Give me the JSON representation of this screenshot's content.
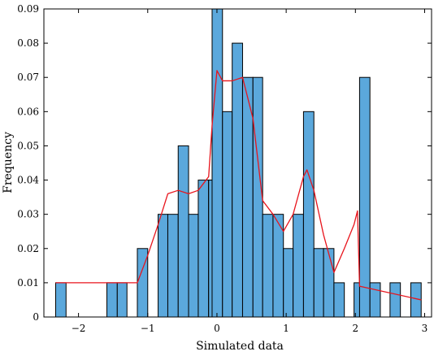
{
  "chart_data": {
    "type": "bar",
    "title": "",
    "xlabel": "Simulated data",
    "ylabel": "Frequency",
    "xlim": [
      -2.5,
      3.1
    ],
    "ylim": [
      0,
      0.09
    ],
    "xticks": [
      -2,
      -1,
      0,
      1,
      2,
      3
    ],
    "xtick_labels": [
      "−2",
      "−1",
      "0",
      "1",
      "2",
      "3"
    ],
    "yticks": [
      0,
      0.01,
      0.02,
      0.03,
      0.04,
      0.05,
      0.06,
      0.07,
      0.08,
      0.09
    ],
    "ytick_labels": [
      "0",
      "0.01",
      "0.02",
      "0.03",
      "0.04",
      "0.05",
      "0.06",
      "0.07",
      "0.08",
      "0.09"
    ],
    "grid": false,
    "bar_color": "#5ba8dc",
    "bar_edge_color": "#000000",
    "bars": [
      {
        "x0": -2.33,
        "x1": -2.18,
        "y": 0.01
      },
      {
        "x0": -1.59,
        "x1": -1.44,
        "y": 0.01
      },
      {
        "x0": -1.44,
        "x1": -1.3,
        "y": 0.01
      },
      {
        "x0": -1.15,
        "x1": -1.0,
        "y": 0.02
      },
      {
        "x0": -0.85,
        "x1": -0.71,
        "y": 0.03
      },
      {
        "x0": -0.71,
        "x1": -0.56,
        "y": 0.03
      },
      {
        "x0": -0.56,
        "x1": -0.41,
        "y": 0.05
      },
      {
        "x0": -0.41,
        "x1": -0.27,
        "y": 0.03
      },
      {
        "x0": -0.27,
        "x1": -0.12,
        "y": 0.04
      },
      {
        "x0": -0.12,
        "x1": 0.03,
        "y": 0.04
      },
      {
        "x0": -0.12,
        "x1": 0.03,
        "y": 0.04
      },
      {
        "x0": -0.07,
        "x1": 0.08,
        "y": 0.09
      },
      {
        "x0": 0.08,
        "x1": 0.22,
        "y": 0.06
      },
      {
        "x0": 0.22,
        "x1": 0.37,
        "y": 0.08
      },
      {
        "x0": 0.37,
        "x1": 0.52,
        "y": 0.07
      },
      {
        "x0": 0.52,
        "x1": 0.66,
        "y": 0.07
      },
      {
        "x0": 0.66,
        "x1": 0.81,
        "y": 0.03
      },
      {
        "x0": 0.81,
        "x1": 0.96,
        "y": 0.03
      },
      {
        "x0": 0.96,
        "x1": 1.1,
        "y": 0.02
      },
      {
        "x0": 1.1,
        "x1": 1.25,
        "y": 0.03
      },
      {
        "x0": 1.25,
        "x1": 1.4,
        "y": 0.06
      },
      {
        "x0": 1.4,
        "x1": 1.54,
        "y": 0.02
      },
      {
        "x0": 1.54,
        "x1": 1.69,
        "y": 0.02
      },
      {
        "x0": 1.69,
        "x1": 1.84,
        "y": 0.01
      },
      {
        "x0": 1.98,
        "x1": 2.13,
        "y": 0.01
      },
      {
        "x0": 2.06,
        "x1": 2.21,
        "y": 0.07
      },
      {
        "x0": 2.21,
        "x1": 2.36,
        "y": 0.01
      },
      {
        "x0": 2.5,
        "x1": 2.65,
        "y": 0.01
      },
      {
        "x0": 2.8,
        "x1": 2.95,
        "y": 0.01
      }
    ],
    "series": [
      {
        "type": "line",
        "color": "#e8141c",
        "x": [
          -2.33,
          -1.15,
          -1.0,
          -0.85,
          -0.71,
          -0.56,
          -0.41,
          -0.27,
          -0.12,
          -0.07,
          0.0,
          0.08,
          0.22,
          0.37,
          0.52,
          0.66,
          0.81,
          0.96,
          1.1,
          1.25,
          1.3,
          1.4,
          1.54,
          1.69,
          1.84,
          1.98,
          2.03,
          2.06,
          2.95
        ],
        "y": [
          0.01,
          0.01,
          0.018,
          0.027,
          0.036,
          0.037,
          0.036,
          0.037,
          0.041,
          0.056,
          0.072,
          0.069,
          0.069,
          0.07,
          0.058,
          0.034,
          0.03,
          0.025,
          0.03,
          0.041,
          0.043,
          0.037,
          0.024,
          0.013,
          0.02,
          0.027,
          0.031,
          0.009,
          0.005
        ]
      }
    ]
  }
}
